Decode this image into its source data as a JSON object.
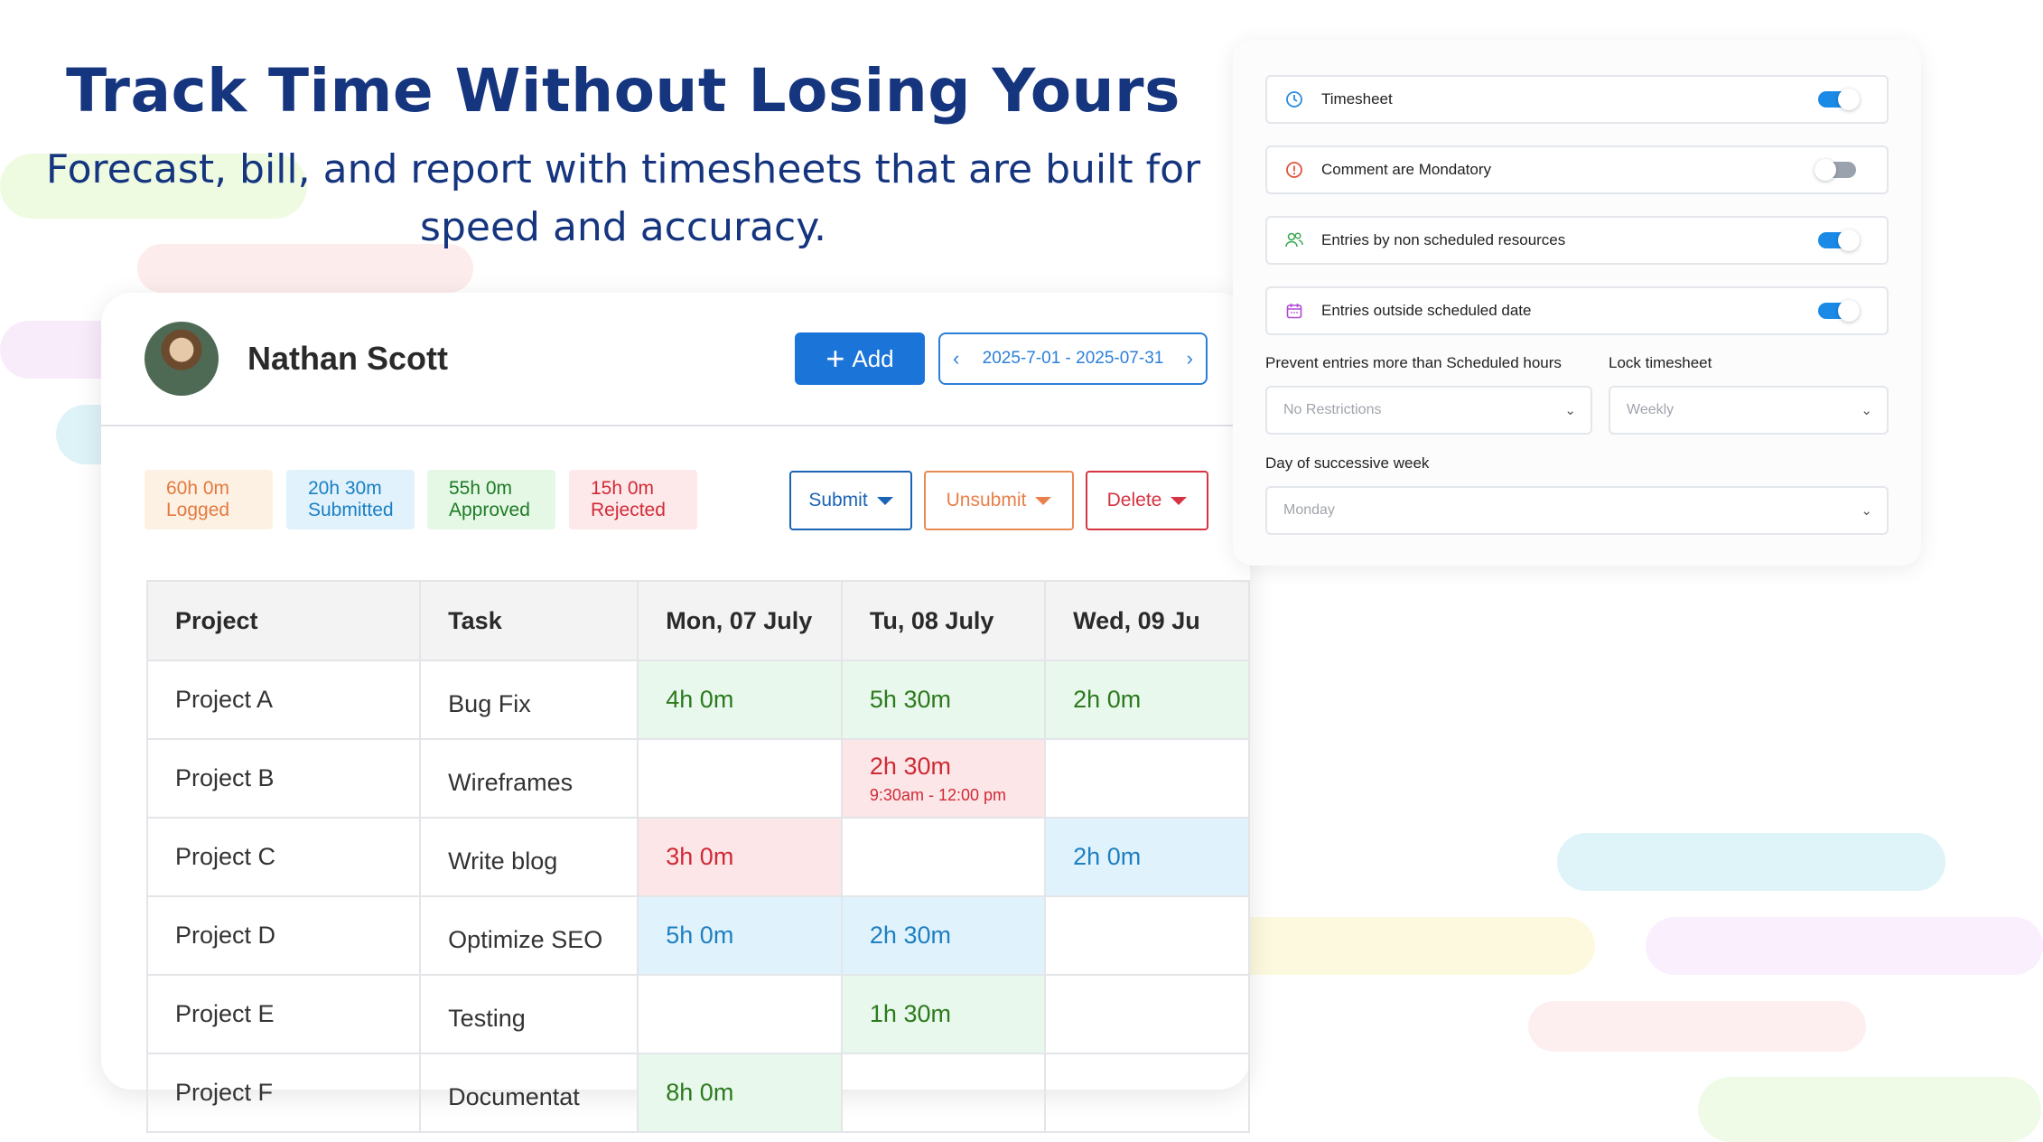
{
  "hero": {
    "title": "Track Time Without Losing Yours",
    "subtitle_line1": "Forecast, bill, and report with timesheets that are built for",
    "subtitle_line2": "speed and accuracy."
  },
  "timesheet": {
    "user_name": "Nathan Scott",
    "add_label": "Add",
    "date_range": "2025-7-01 - 2025-07-31",
    "stats": [
      {
        "value": "60h 0m",
        "label": "Logged",
        "color": "#e27a3f"
      },
      {
        "value": "20h 30m",
        "label": "Submitted",
        "color": "#1a7fc4"
      },
      {
        "value": "55h 0m",
        "label": "Approved",
        "color": "#1e7b25"
      },
      {
        "value": "15h 0m",
        "label": "Rejected",
        "color": "#d12b37"
      }
    ],
    "actions": {
      "submit": "Submit",
      "unsubmit": "Unsubmit",
      "delete": "Delete"
    },
    "columns": [
      "Project",
      "Task",
      "Mon, 07 July",
      "Tu, 08 July",
      "Wed, 09 Ju"
    ],
    "rows": [
      {
        "project": "Project A",
        "task": "Bug Fix",
        "d1": "4h 0m",
        "d2": "5h 30m",
        "d2_sub": "",
        "d3": "2h 0m"
      },
      {
        "project": "Project B",
        "task": "Wireframes",
        "d1": "",
        "d2": "2h 30m",
        "d2_sub": "9:30am - 12:00 pm",
        "d3": ""
      },
      {
        "project": "Project C",
        "task": "Write blog",
        "d1": "3h 0m",
        "d2": "",
        "d2_sub": "",
        "d3": "2h 0m"
      },
      {
        "project": "Project D",
        "task": "Optimize SEO",
        "d1": "5h 0m",
        "d2": "2h 30m",
        "d2_sub": "",
        "d3": ""
      },
      {
        "project": "Project E",
        "task": "Testing",
        "d1": "",
        "d2": "1h 30m",
        "d2_sub": "",
        "d3": ""
      },
      {
        "project": "Project F",
        "task": "Documentat",
        "d1": "8h 0m",
        "d2": "",
        "d2_sub": "",
        "d3": ""
      }
    ]
  },
  "settings": {
    "toggles": [
      {
        "label": "Timesheet",
        "icon": "clock-icon",
        "on": true
      },
      {
        "label": "Comment are Mondatory",
        "icon": "alert-circle-icon",
        "on": false
      },
      {
        "label": "Entries by non scheduled resources",
        "icon": "users-icon",
        "on": true
      },
      {
        "label": "Entries  outside scheduled date",
        "icon": "calendar-icon",
        "on": true
      }
    ],
    "prevent_label": "Prevent entries more than Scheduled hours",
    "prevent_value": "No Restrictions",
    "lock_label": "Lock timesheet",
    "lock_value": "Weekly",
    "day_label": "Day of  successive week",
    "day_value": "Monday"
  },
  "colors": {
    "brand_blue": "#1b74d8",
    "headline": "#15357f",
    "toggle_on": "#1a8ae6"
  }
}
